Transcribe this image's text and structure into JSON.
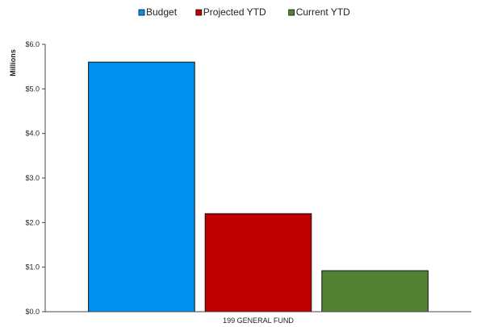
{
  "chart_data": {
    "type": "bar",
    "categories": [
      "199 GENERAL FUND"
    ],
    "series": [
      {
        "name": "Budget",
        "values": [
          5.6
        ],
        "color": "#0090F0"
      },
      {
        "name": "Projected YTD",
        "values": [
          2.2
        ],
        "color": "#C00000"
      },
      {
        "name": "Current YTD",
        "values": [
          0.92
        ],
        "color": "#548235"
      }
    ],
    "ylabel": "Millions",
    "xlabel": "",
    "ylim": [
      0,
      6
    ],
    "yticks": [
      0,
      1,
      2,
      3,
      4,
      5,
      6
    ],
    "ytick_labels": [
      "$0.0",
      "$1.0",
      "$2.0",
      "$3.0",
      "$4.0",
      "$5.0",
      "$6.0"
    ],
    "legend_position": "top-center",
    "grid": false
  }
}
